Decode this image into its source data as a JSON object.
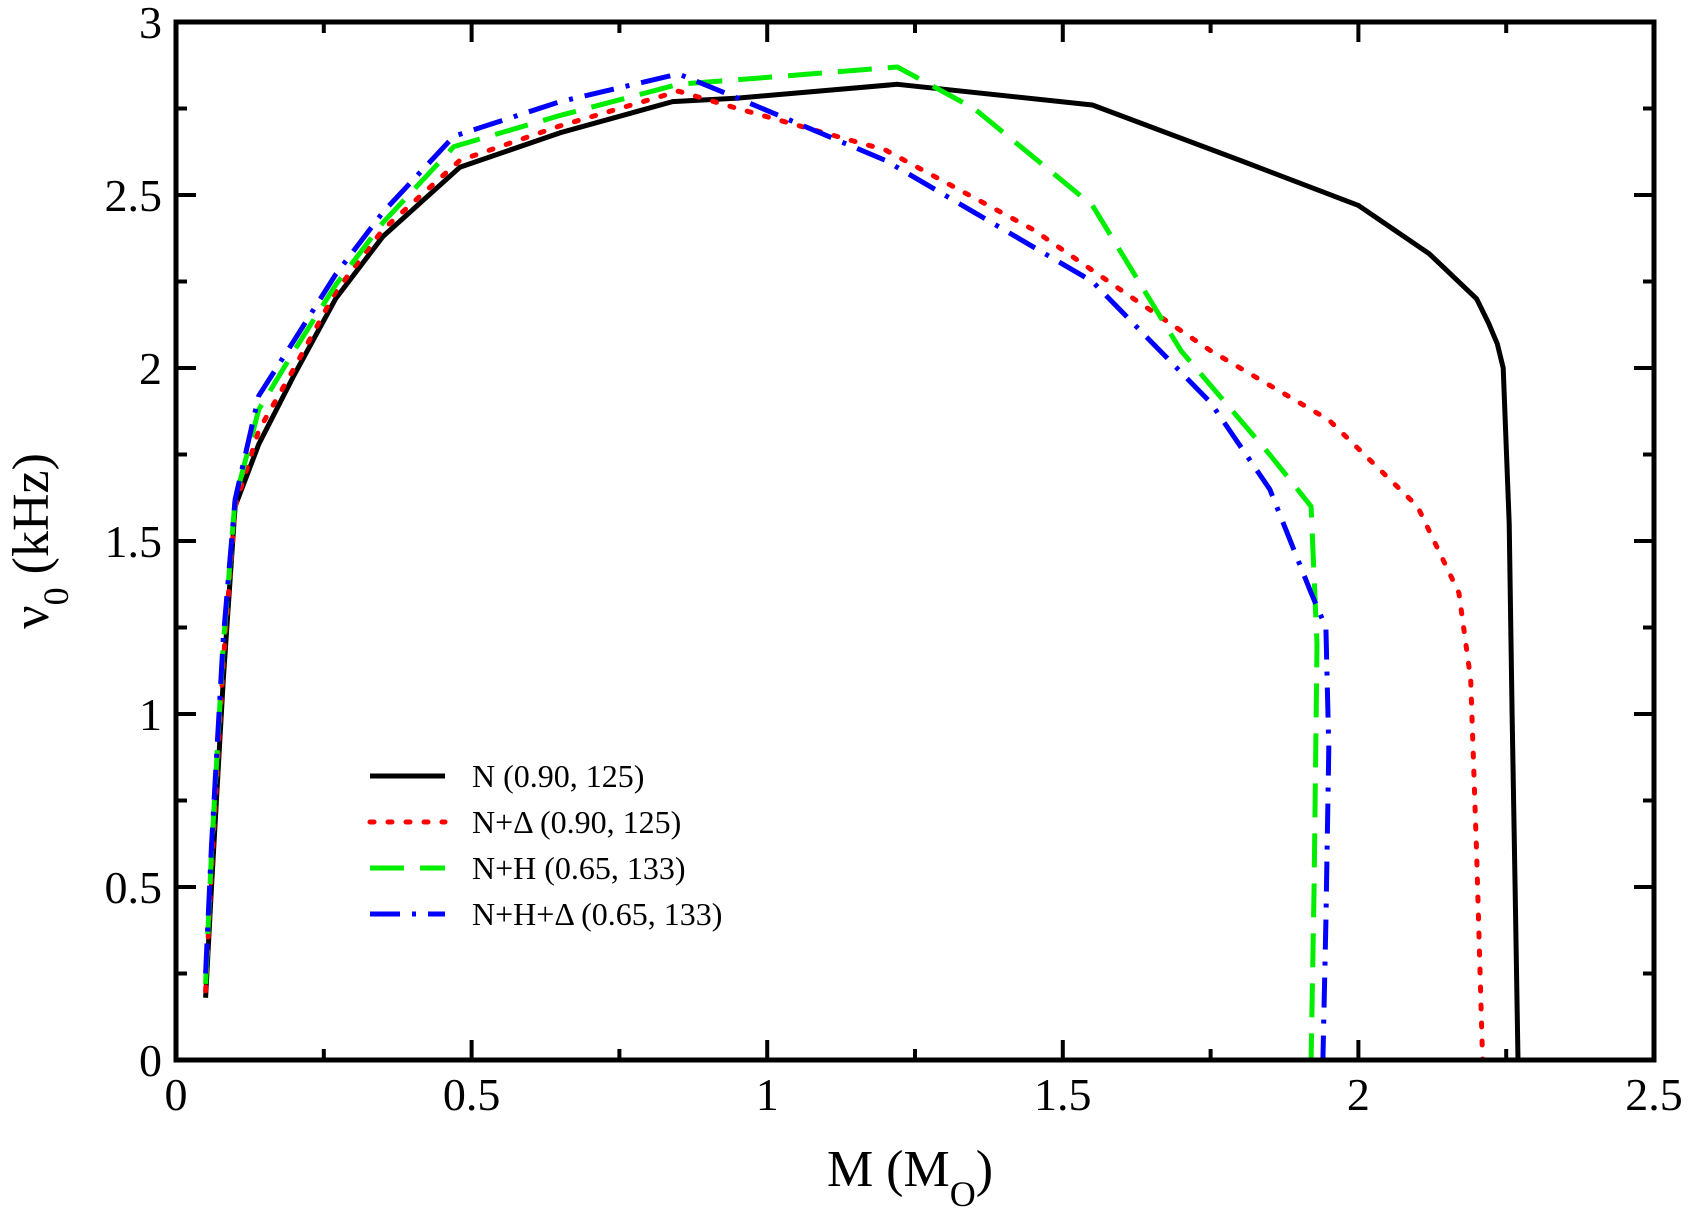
{
  "chart_data": {
    "type": "line",
    "title": "",
    "xlabel": "M (M",
    "xlabel_sub": "O",
    "xlabel_close": ")",
    "ylabel": "ν",
    "ylabel_sub": "0",
    "ylabel_unit": " (kHz)",
    "xlim": [
      0,
      2.5
    ],
    "ylim": [
      0,
      3
    ],
    "xticks": [
      0,
      0.5,
      1,
      1.5,
      2,
      2.5
    ],
    "xtick_labels": [
      "0",
      "0.5",
      "1",
      "1.5",
      "2",
      "2.5"
    ],
    "yticks": [
      0,
      0.5,
      1,
      1.5,
      2,
      2.5,
      3
    ],
    "ytick_labels": [
      "0",
      "0.5",
      "1",
      "1.5",
      "2",
      "2.5",
      "3"
    ],
    "grid": false,
    "legend_position": "lower-left",
    "series": [
      {
        "name": "N (0.90, 125)",
        "color": "#000000",
        "style": "solid",
        "x": [
          0.05,
          0.06,
          0.08,
          0.1,
          0.14,
          0.2,
          0.27,
          0.35,
          0.48,
          0.65,
          0.84,
          0.95,
          1.22,
          1.55,
          1.8,
          2.0,
          2.12,
          2.2,
          2.22,
          2.235,
          2.245,
          2.255,
          2.26,
          2.265,
          2.27
        ],
        "y": [
          0.18,
          0.5,
          1.1,
          1.6,
          1.78,
          1.98,
          2.2,
          2.38,
          2.58,
          2.68,
          2.77,
          2.78,
          2.82,
          2.76,
          2.6,
          2.47,
          2.33,
          2.2,
          2.13,
          2.07,
          2.0,
          1.55,
          1.0,
          0.5,
          0.0
        ]
      },
      {
        "name": "N+Δ (0.90, 125)",
        "color": "#ff0000",
        "style": "dotted",
        "x": [
          0.05,
          0.06,
          0.08,
          0.1,
          0.14,
          0.2,
          0.27,
          0.35,
          0.48,
          0.65,
          0.85,
          0.95,
          1.2,
          1.45,
          1.62,
          1.75,
          1.95,
          2.1,
          2.17,
          2.19,
          2.2,
          2.205,
          2.21
        ],
        "y": [
          0.2,
          0.55,
          1.15,
          1.6,
          1.82,
          2.0,
          2.22,
          2.4,
          2.6,
          2.7,
          2.8,
          2.75,
          2.63,
          2.4,
          2.2,
          2.05,
          1.85,
          1.6,
          1.35,
          1.1,
          0.6,
          0.3,
          0.0
        ]
      },
      {
        "name": "N+H (0.65, 133)",
        "color": "#00ee00",
        "style": "dashed",
        "x": [
          0.05,
          0.06,
          0.08,
          0.1,
          0.14,
          0.2,
          0.27,
          0.35,
          0.47,
          0.65,
          0.85,
          1.0,
          1.22,
          1.35,
          1.55,
          1.7,
          1.85,
          1.92,
          1.93,
          1.925,
          1.92
        ],
        "y": [
          0.22,
          0.6,
          1.2,
          1.62,
          1.88,
          2.05,
          2.24,
          2.42,
          2.64,
          2.73,
          2.82,
          2.84,
          2.87,
          2.75,
          2.47,
          2.05,
          1.75,
          1.6,
          1.2,
          0.5,
          0.0
        ]
      },
      {
        "name": "N+H+Δ (0.65, 133)",
        "color": "#0000ff",
        "style": "dashdot",
        "x": [
          0.05,
          0.06,
          0.08,
          0.1,
          0.14,
          0.2,
          0.27,
          0.35,
          0.47,
          0.65,
          0.85,
          0.95,
          1.2,
          1.35,
          1.55,
          1.75,
          1.85,
          1.92,
          1.945,
          1.95,
          1.945,
          1.94
        ],
        "y": [
          0.25,
          0.62,
          1.22,
          1.62,
          1.92,
          2.08,
          2.27,
          2.45,
          2.67,
          2.77,
          2.85,
          2.78,
          2.6,
          2.45,
          2.25,
          1.9,
          1.65,
          1.35,
          1.25,
          0.9,
          0.4,
          0.0
        ]
      }
    ]
  }
}
